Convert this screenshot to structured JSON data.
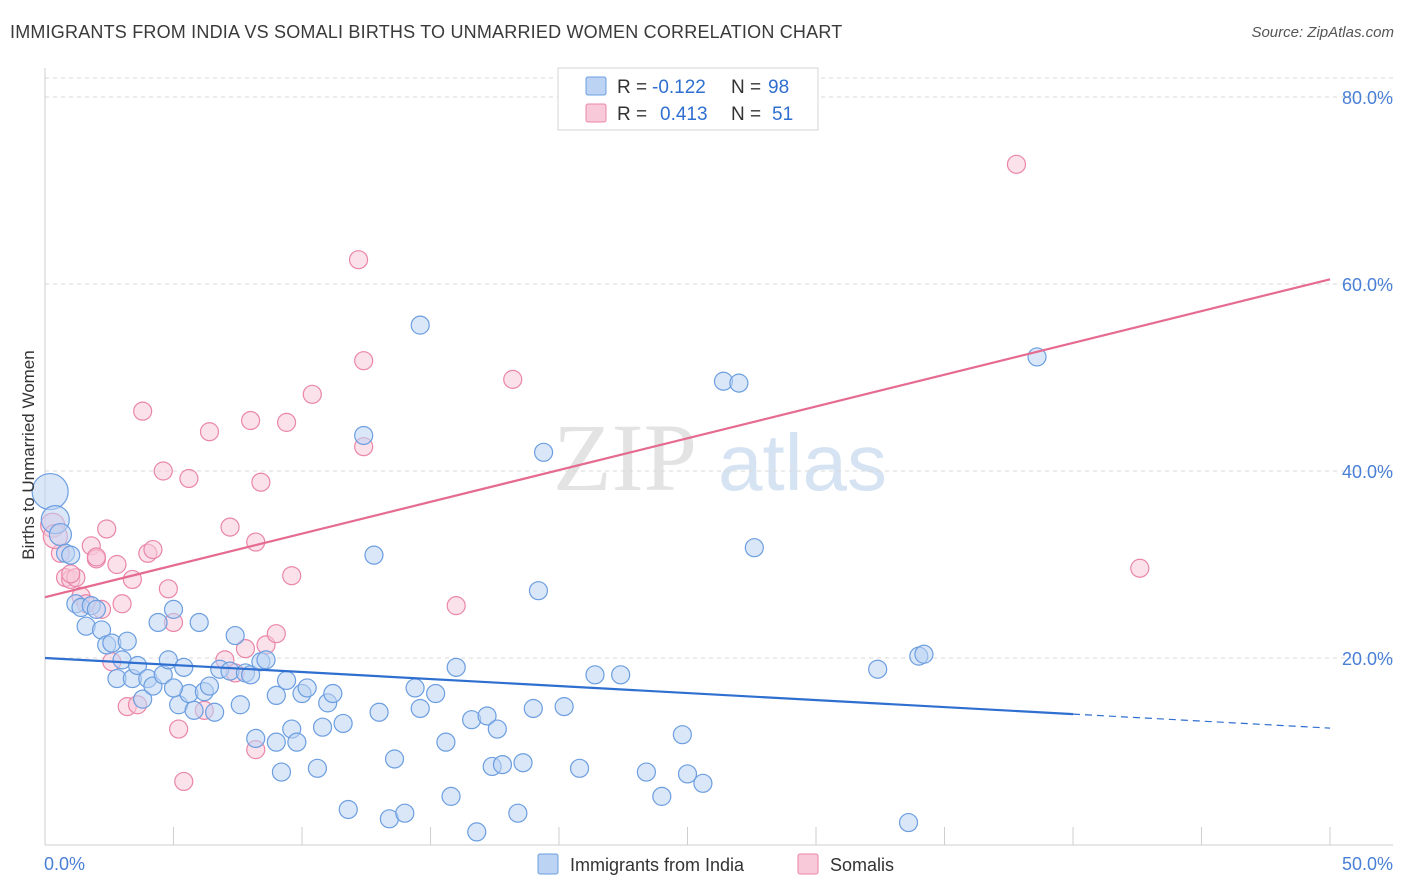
{
  "title": "IMMIGRANTS FROM INDIA VS SOMALI BIRTHS TO UNMARRIED WOMEN CORRELATION CHART",
  "source": "Source: ZipAtlas.com",
  "watermark": {
    "zip": "ZIP",
    "atlas": "atlas"
  },
  "colors": {
    "blue": "#6c9ee0",
    "blue_fill": "#bcd3f4",
    "blue_line": "#2f6fd0",
    "pink": "#ea86a8",
    "pink_fill": "#f8c9d8",
    "pink_line": "#e56b91",
    "axis_text": "#4a7fd6",
    "grid": "#d9d9d9"
  },
  "legend": {
    "rows": [
      {
        "r_label": "R =",
        "r_value": "-0.122",
        "n_label": "N =",
        "n_value": "98"
      },
      {
        "r_label": "R =",
        "r_value": "0.413",
        "n_label": "N =",
        "n_value": "51"
      }
    ]
  },
  "chart_data": {
    "type": "scatter",
    "title": "IMMIGRANTS FROM INDIA VS SOMALI BIRTHS TO UNMARRIED WOMEN CORRELATION CHART",
    "xlabel": "",
    "ylabel": "Births to Unmarried Women",
    "xlim": [
      0,
      50
    ],
    "ylim": [
      0,
      80
    ],
    "x_tick_labels": [
      "0.0%",
      "50.0%"
    ],
    "y_tick_labels": [
      "20.0%",
      "40.0%",
      "60.0%",
      "80.0%"
    ],
    "y_ticks": [
      20,
      40,
      60,
      80
    ],
    "grid": true,
    "series": [
      {
        "name": "Immigrants from India",
        "color": "blue",
        "r": -0.122,
        "n": 98,
        "trend": {
          "x0": 0,
          "y0": 20.0,
          "x1": 40,
          "y1": 14.0,
          "dash_to_x": 50,
          "dash_y": 12.5
        },
        "points": [
          [
            0.2,
            37.8
          ],
          [
            0.4,
            34.8
          ],
          [
            0.6,
            33.2
          ],
          [
            0.8,
            31.2
          ],
          [
            1.0,
            31.0
          ],
          [
            1.2,
            25.8
          ],
          [
            1.4,
            25.4
          ],
          [
            1.6,
            23.4
          ],
          [
            1.8,
            25.6
          ],
          [
            2.0,
            25.2
          ],
          [
            2.2,
            23.0
          ],
          [
            2.4,
            21.4
          ],
          [
            2.6,
            21.6
          ],
          [
            2.8,
            17.8
          ],
          [
            3.0,
            19.8
          ],
          [
            3.2,
            21.8
          ],
          [
            3.4,
            17.8
          ],
          [
            3.6,
            19.2
          ],
          [
            3.8,
            15.6
          ],
          [
            4.0,
            17.8
          ],
          [
            4.2,
            17.0
          ],
          [
            4.4,
            23.8
          ],
          [
            4.6,
            18.2
          ],
          [
            4.8,
            19.8
          ],
          [
            5.0,
            25.2
          ],
          [
            5.2,
            15.0
          ],
          [
            5.4,
            19.0
          ],
          [
            5.6,
            16.2
          ],
          [
            5.8,
            14.4
          ],
          [
            6.0,
            23.8
          ],
          [
            6.2,
            16.4
          ],
          [
            6.4,
            17.0
          ],
          [
            6.6,
            14.2
          ],
          [
            6.8,
            18.8
          ],
          [
            7.2,
            18.6
          ],
          [
            7.4,
            22.4
          ],
          [
            7.6,
            15.0
          ],
          [
            7.8,
            18.4
          ],
          [
            8.0,
            18.2
          ],
          [
            8.2,
            11.4
          ],
          [
            8.4,
            19.6
          ],
          [
            8.6,
            19.8
          ],
          [
            9.0,
            11.0
          ],
          [
            9.2,
            7.8
          ],
          [
            9.4,
            17.6
          ],
          [
            9.6,
            12.4
          ],
          [
            9.8,
            11.0
          ],
          [
            10.0,
            16.2
          ],
          [
            10.2,
            16.8
          ],
          [
            10.6,
            8.2
          ],
          [
            10.8,
            12.6
          ],
          [
            11.0,
            15.2
          ],
          [
            11.2,
            16.2
          ],
          [
            11.6,
            13.0
          ],
          [
            11.8,
            3.8
          ],
          [
            12.4,
            43.8
          ],
          [
            12.8,
            31.0
          ],
          [
            13.0,
            14.2
          ],
          [
            13.4,
            2.8
          ],
          [
            13.6,
            9.2
          ],
          [
            14.0,
            3.4
          ],
          [
            14.4,
            16.8
          ],
          [
            14.6,
            14.6
          ],
          [
            15.2,
            16.2
          ],
          [
            15.6,
            11.0
          ],
          [
            15.8,
            5.2
          ],
          [
            16.0,
            19.0
          ],
          [
            16.6,
            13.4
          ],
          [
            16.8,
            1.4
          ],
          [
            17.2,
            13.8
          ],
          [
            17.4,
            8.4
          ],
          [
            17.6,
            12.4
          ],
          [
            17.8,
            8.6
          ],
          [
            18.4,
            3.4
          ],
          [
            18.6,
            8.8
          ],
          [
            19.0,
            14.6
          ],
          [
            19.2,
            27.2
          ],
          [
            19.4,
            42.0
          ],
          [
            20.2,
            14.8
          ],
          [
            20.8,
            8.2
          ],
          [
            21.4,
            18.2
          ],
          [
            22.4,
            18.2
          ],
          [
            23.4,
            7.8
          ],
          [
            24.0,
            5.2
          ],
          [
            24.8,
            11.8
          ],
          [
            25.0,
            7.6
          ],
          [
            25.6,
            6.6
          ],
          [
            26.4,
            49.6
          ],
          [
            27.6,
            31.8
          ],
          [
            32.4,
            18.8
          ],
          [
            33.6,
            2.4
          ],
          [
            34.0,
            20.2
          ],
          [
            34.2,
            20.4
          ],
          [
            38.6,
            52.2
          ],
          [
            14.6,
            55.6
          ],
          [
            27.0,
            49.4
          ],
          [
            5.0,
            16.8
          ],
          [
            9.0,
            16.0
          ]
        ]
      },
      {
        "name": "Somalis",
        "color": "pink",
        "r": 0.413,
        "n": 51,
        "trend": {
          "x0": 0,
          "y0": 26.5,
          "x1": 50,
          "y1": 60.5
        },
        "points": [
          [
            0.3,
            34.2
          ],
          [
            0.6,
            31.2
          ],
          [
            0.8,
            28.6
          ],
          [
            1.0,
            28.4
          ],
          [
            1.2,
            28.6
          ],
          [
            1.4,
            26.6
          ],
          [
            1.6,
            25.8
          ],
          [
            1.8,
            32.0
          ],
          [
            2.0,
            30.6
          ],
          [
            2.2,
            25.2
          ],
          [
            2.4,
            33.8
          ],
          [
            2.6,
            19.6
          ],
          [
            2.8,
            30.0
          ],
          [
            3.0,
            25.8
          ],
          [
            3.2,
            14.8
          ],
          [
            3.4,
            28.4
          ],
          [
            3.6,
            15.0
          ],
          [
            3.8,
            46.4
          ],
          [
            4.0,
            31.2
          ],
          [
            4.2,
            31.6
          ],
          [
            4.6,
            40.0
          ],
          [
            4.8,
            27.4
          ],
          [
            5.0,
            23.8
          ],
          [
            5.2,
            12.4
          ],
          [
            5.4,
            6.8
          ],
          [
            5.6,
            39.2
          ],
          [
            6.2,
            14.4
          ],
          [
            6.4,
            44.2
          ],
          [
            7.0,
            19.8
          ],
          [
            7.2,
            34.0
          ],
          [
            7.4,
            18.4
          ],
          [
            7.8,
            21.0
          ],
          [
            8.0,
            45.4
          ],
          [
            8.2,
            10.2
          ],
          [
            8.4,
            38.8
          ],
          [
            8.6,
            21.4
          ],
          [
            9.0,
            22.6
          ],
          [
            9.4,
            45.2
          ],
          [
            9.6,
            28.8
          ],
          [
            10.4,
            48.2
          ],
          [
            12.4,
            42.6
          ],
          [
            12.2,
            62.6
          ],
          [
            12.4,
            51.8
          ],
          [
            16.0,
            25.6
          ],
          [
            18.2,
            49.8
          ],
          [
            37.8,
            72.8
          ],
          [
            42.6,
            29.6
          ],
          [
            0.4,
            33.0
          ],
          [
            1.0,
            29.0
          ],
          [
            2.0,
            30.8
          ],
          [
            8.2,
            32.4
          ]
        ]
      }
    ]
  }
}
